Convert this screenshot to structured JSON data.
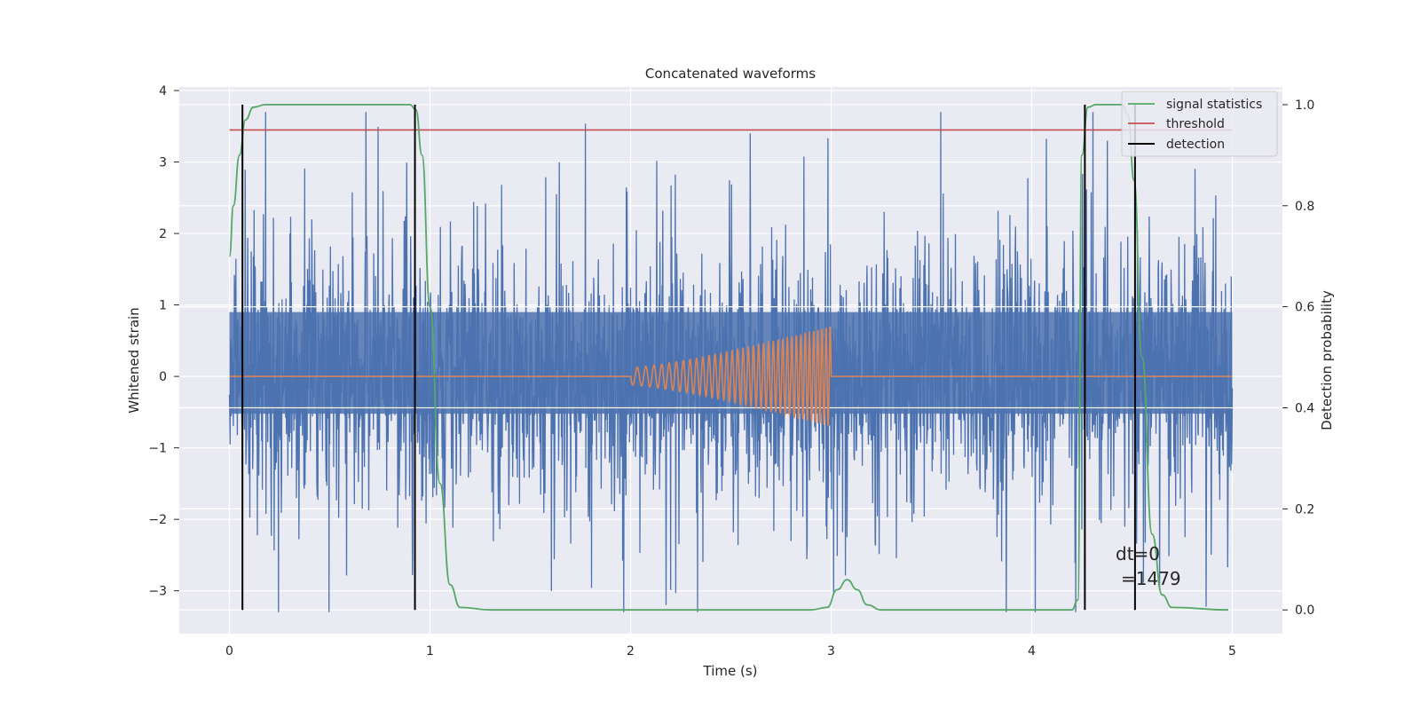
{
  "chart_data": {
    "type": "line",
    "title": "Concatenated waveforms",
    "xlabel": "Time (s)",
    "ylabel": "Whitened strain",
    "y2label": "Detection probability",
    "xlim": [
      -0.25,
      5.25
    ],
    "ylim": [
      -3.6,
      4.05
    ],
    "y2lim": [
      -0.047,
      1.035
    ],
    "xticks": [
      "0",
      "1",
      "2",
      "3",
      "4",
      "5"
    ],
    "xtick_values": [
      0,
      1,
      2,
      3,
      4,
      5
    ],
    "yticks": [
      "−3",
      "−2",
      "−1",
      "0",
      "1",
      "2",
      "3",
      "4"
    ],
    "ytick_values": [
      -3,
      -2,
      -1,
      0,
      1,
      2,
      3,
      4
    ],
    "y2ticks": [
      "0.0",
      "0.2",
      "0.4",
      "0.6",
      "0.8",
      "1.0"
    ],
    "y2tick_values": [
      0.0,
      0.2,
      0.4,
      0.6,
      0.8,
      1.0
    ],
    "grid": true,
    "legend_position": "upper-right",
    "colors": {
      "background": "#eaeaf2",
      "grid": "#ffffff",
      "strain": "#4c72b0",
      "template": "#dd8452",
      "signal_statistics": "#55a868",
      "threshold": "#c44e52",
      "detection": "#000000"
    },
    "series": [
      {
        "name": "signal statistics",
        "axis": "right",
        "x": [
          0,
          0.02,
          0.05,
          0.08,
          0.12,
          0.18,
          0.3,
          0.9,
          0.93,
          0.96,
          1.0,
          1.05,
          1.1,
          1.15,
          1.3,
          2.9,
          2.98,
          3.03,
          3.08,
          3.13,
          3.18,
          3.25,
          4.2,
          4.23,
          4.25,
          4.28,
          4.32,
          4.45,
          4.48,
          4.51,
          4.55,
          4.6,
          4.65,
          4.7,
          4.98
        ],
        "values": [
          0.7,
          0.8,
          0.9,
          0.97,
          0.995,
          1.0,
          1.0,
          1.0,
          0.99,
          0.9,
          0.6,
          0.25,
          0.05,
          0.005,
          0.0,
          0.0,
          0.005,
          0.04,
          0.06,
          0.04,
          0.01,
          0.0,
          0.0,
          0.02,
          0.9,
          0.995,
          1.0,
          1.0,
          0.98,
          0.85,
          0.5,
          0.15,
          0.03,
          0.005,
          0.0
        ]
      },
      {
        "name": "threshold",
        "axis": "right",
        "x": [
          0,
          5
        ],
        "values": [
          0.95,
          0.95
        ]
      },
      {
        "name": "detection",
        "axis": "right",
        "type": "vlines",
        "x": [
          0.065,
          0.925,
          4.265,
          4.515
        ],
        "ymin": 0.0,
        "ymax": 1.0
      }
    ],
    "strain_noise": {
      "axis": "left",
      "x_range": [
        0,
        5
      ],
      "core_amplitude": 0.9,
      "peak_range": [
        -3.3,
        3.7
      ],
      "color": "#4c72b0"
    },
    "template_chirp": {
      "axis": "left",
      "x_range": [
        0,
        5
      ],
      "chirp_start": 2.0,
      "chirp_end": 3.0,
      "amplitude_start": 0.12,
      "amplitude_end": 0.7,
      "color": "#dd8452"
    },
    "annotation": {
      "line1": "dt=0",
      "line2": "=1479",
      "x": 4.52,
      "y": -2.55
    }
  }
}
